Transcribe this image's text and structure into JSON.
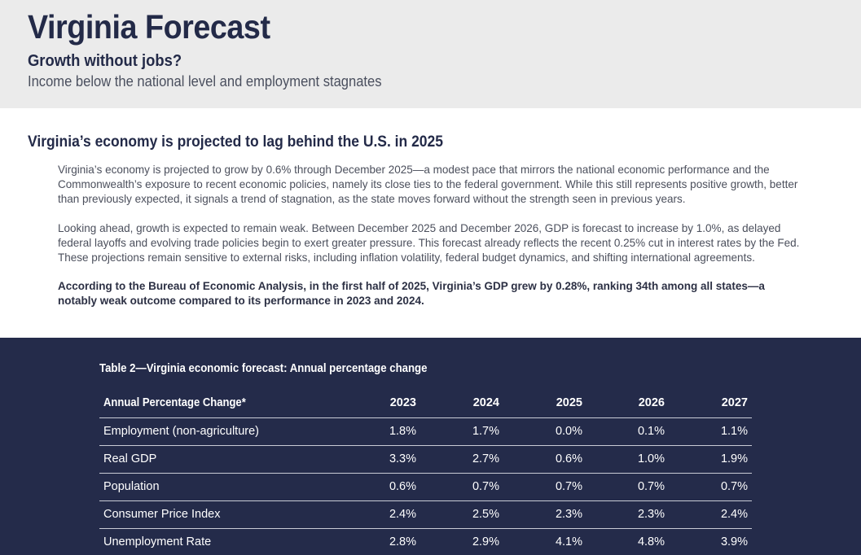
{
  "header": {
    "title": "Virginia Forecast",
    "subtitle": "Growth without jobs?",
    "tagline": "Income below the national level and employment stagnates"
  },
  "section": {
    "heading": "Virginia’s economy is projected to lag behind the U.S. in 2025",
    "paragraphs": [
      "Virginia’s economy is projected to grow by 0.6% through December 2025—a modest pace that mirrors the national economic performance and the Commonwealth’s exposure to recent economic policies, namely its close ties to the federal government. While this still represents positive growth, better than previously expected, it signals a trend of stagnation, as the state moves forward without the strength seen in previous years.",
      "Looking ahead, growth is expected to remain weak. Between December 2025 and December 2026, GDP is forecast to increase by 1.0%, as delayed federal layoffs and evolving trade policies begin to exert greater pressure. This forecast already reflects the recent 0.25% cut in interest rates by the Fed. These projections remain sensitive to external risks, including inflation volatility, federal budget dynamics, and shifting international agreements.",
      "According to the Bureau of Economic Analysis, in the first half of 2025, Virginia’s GDP grew by 0.28%, ranking 34th among all states—a notably weak outcome compared to its performance in 2023 and 2024."
    ]
  },
  "table": {
    "title": "Table 2—Virginia economic forecast: Annual percentage change",
    "columns": [
      "Annual Percentage Change*",
      "2023",
      "2024",
      "2025",
      "2026",
      "2027"
    ],
    "rows": [
      [
        "Employment (non-agriculture)",
        "1.8%",
        "1.7%",
        "0.0%",
        "0.1%",
        "1.1%"
      ],
      [
        "Real GDP",
        "3.3%",
        "2.7%",
        "0.6%",
        "1.0%",
        "1.9%"
      ],
      [
        "Population",
        "0.6%",
        "0.7%",
        "0.7%",
        "0.7%",
        "0.7%"
      ],
      [
        "Consumer Price Index",
        "2.4%",
        "2.5%",
        "2.3%",
        "2.3%",
        "2.4%"
      ],
      [
        "Unemployment Rate",
        "2.8%",
        "2.9%",
        "4.1%",
        "4.8%",
        "3.9%"
      ]
    ]
  },
  "colors": {
    "navy": "#242b4a",
    "header_bg": "#ebebeb",
    "title": "#232a48"
  }
}
